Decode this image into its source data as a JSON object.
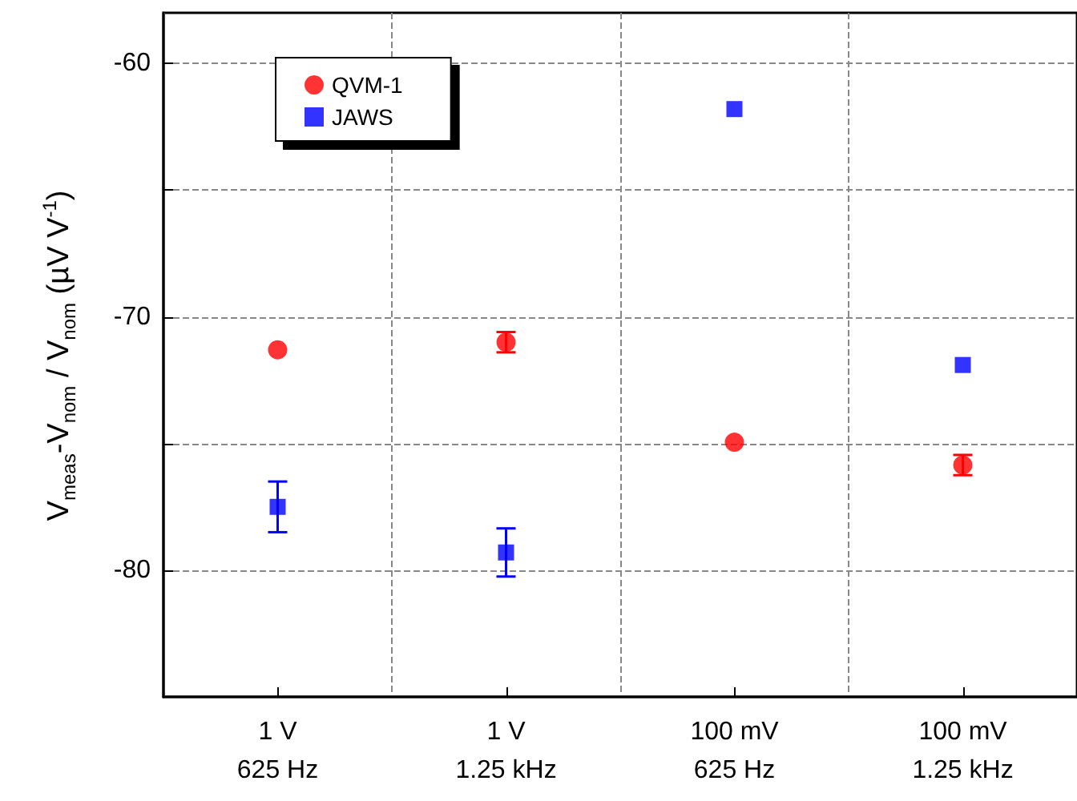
{
  "chart_data": {
    "type": "scatter",
    "ylabel": "V$_{meas}$-V$_{nom}$ / V$_{nom}$ (µV V$^{-1}$)",
    "categories": [
      "1 V\n625 Hz",
      "1 V\n1.25 kHz",
      "100 mV\n625 Hz",
      "100 mV\n1.25 kHz"
    ],
    "series": [
      {
        "name": "QVM-1",
        "color": "#ff0000",
        "marker": "circle",
        "values": [
          -71.3,
          -71.0,
          -74.95,
          -75.85
        ],
        "errors": [
          null,
          0.4,
          null,
          0.4
        ]
      },
      {
        "name": "JAWS",
        "color": "#0000ff",
        "marker": "square",
        "values": [
          -77.5,
          -79.3,
          -61.8,
          -71.9
        ],
        "errors": [
          1.0,
          0.95,
          null,
          null
        ]
      }
    ],
    "ylim": [
      -85,
      -58
    ],
    "yticks": [
      -80,
      {
        "value": -75,
        "label": null
      },
      -70,
      {
        "value": -65,
        "label": null
      },
      -60
    ],
    "grid": true,
    "legend": "top left"
  }
}
